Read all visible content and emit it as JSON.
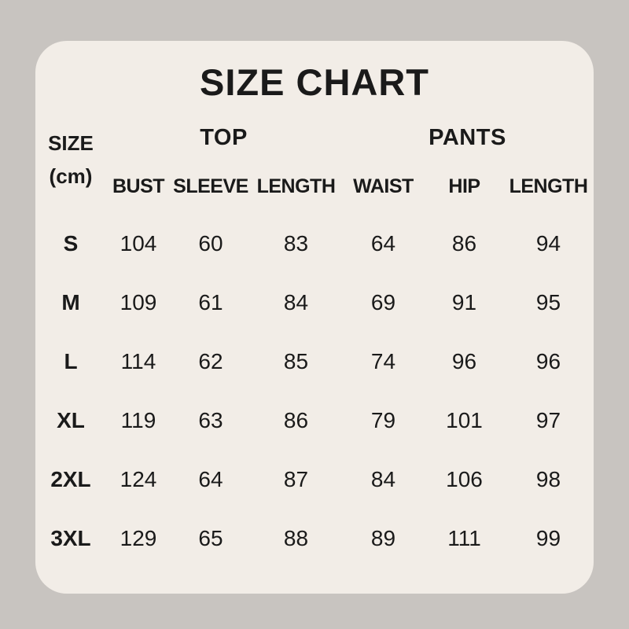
{
  "colors": {
    "background": "#c8c4c0",
    "card": "#f2ede7",
    "text": "#1a1a1a"
  },
  "title": "SIZE CHART",
  "chart_data": {
    "type": "table",
    "title": "SIZE CHART",
    "unit": "cm",
    "size_column_header": [
      "SIZE",
      "(cm)"
    ],
    "column_groups": [
      {
        "label": "TOP",
        "columns": [
          "BUST",
          "SLEEVE",
          "LENGTH"
        ]
      },
      {
        "label": "PANTS",
        "columns": [
          "WAIST",
          "HIP",
          "LENGTH"
        ]
      }
    ],
    "rows": [
      {
        "size": "S",
        "values": [
          "104",
          "60",
          "83",
          "64",
          "86",
          "94"
        ]
      },
      {
        "size": "M",
        "values": [
          "109",
          "61",
          "84",
          "69",
          "91",
          "95"
        ]
      },
      {
        "size": "L",
        "values": [
          "114",
          "62",
          "85",
          "74",
          "96",
          "96"
        ]
      },
      {
        "size": "XL",
        "values": [
          "119",
          "63",
          "86",
          "79",
          "101",
          "97"
        ]
      },
      {
        "size": "2XL",
        "values": [
          "124",
          "64",
          "87",
          "84",
          "106",
          "98"
        ]
      },
      {
        "size": "3XL",
        "values": [
          "129",
          "65",
          "88",
          "89",
          "111",
          "99"
        ]
      }
    ]
  }
}
